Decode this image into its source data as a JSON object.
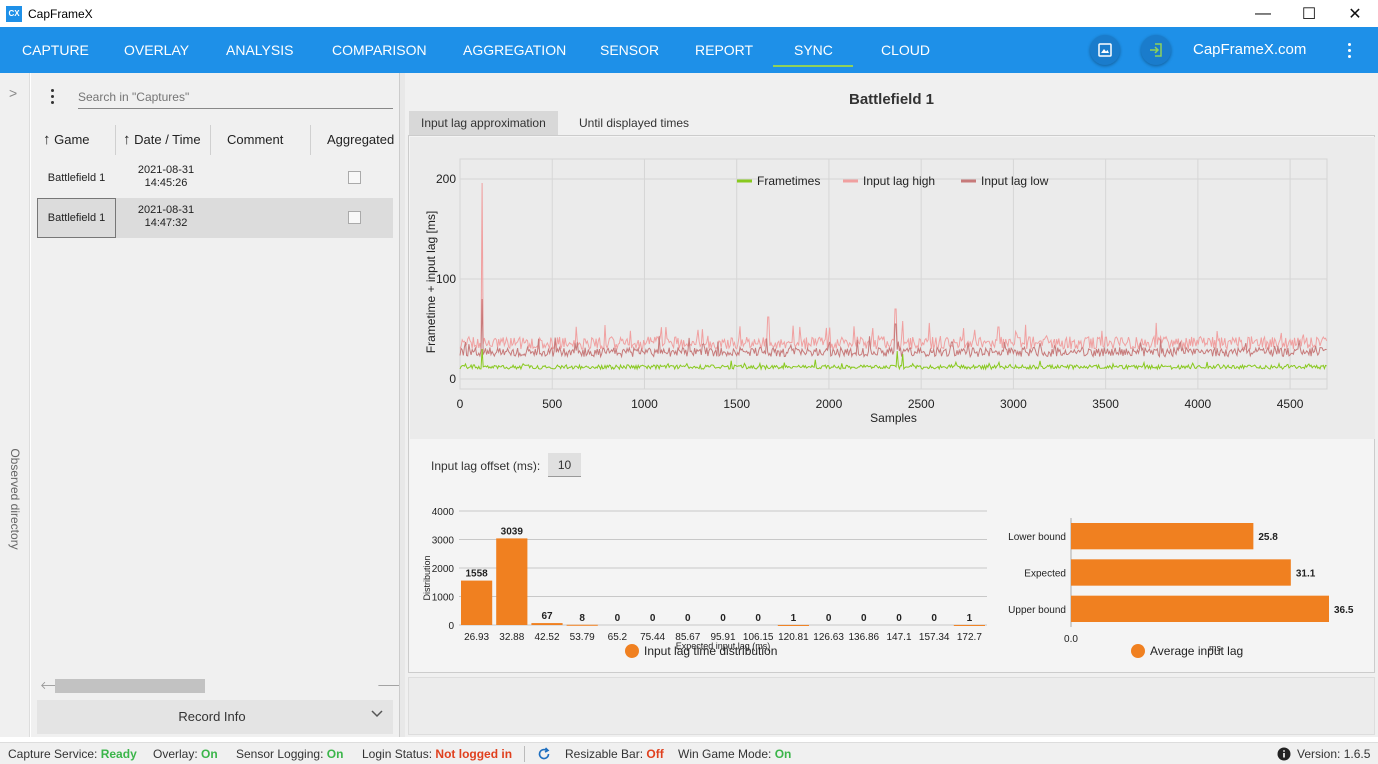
{
  "app": {
    "logo_text": "CX",
    "title": "CapFrameX"
  },
  "window_controls": {
    "minimize": "—",
    "maximize": "☐",
    "close": "✕"
  },
  "nav": {
    "tabs": [
      "CAPTURE",
      "OVERLAY",
      "ANALYSIS",
      "COMPARISON",
      "AGGREGATION",
      "SENSOR",
      "REPORT",
      "SYNC",
      "CLOUD"
    ],
    "active_tab": "SYNC",
    "site": "CapFrameX.com",
    "accent": "#1e90e8",
    "underline_color": "#8fd15a",
    "icons": [
      "screenshot-icon",
      "login-icon",
      "more-vert-icon"
    ]
  },
  "drawer": {
    "label": "Observed directory",
    "chevron": ">"
  },
  "captures": {
    "search_placeholder": "Search in \"Captures\"",
    "columns": [
      "Game",
      "Date / Time",
      "Comment",
      "Aggregated"
    ],
    "sort_arrow": "↑",
    "rows": [
      {
        "game": "Battlefield 1",
        "date": "2021-08-31",
        "time": "14:45:26",
        "aggregated": false,
        "selected": false
      },
      {
        "game": "Battlefield 1",
        "date": "2021-08-31",
        "time": "14:47:32",
        "aggregated": false,
        "selected": true
      }
    ],
    "scroll_left": "🡐",
    "scroll_right": "🡒",
    "record_info": "Record Info"
  },
  "sync": {
    "game_title": "Battlefield 1",
    "tabs": [
      "Input lag approximation",
      "Until displayed times"
    ],
    "active_tab": "Input lag approximation",
    "input_lag_offset_label": "Input lag offset (ms):",
    "input_lag_offset_value": "10"
  },
  "chart_data": [
    {
      "type": "line",
      "title": "",
      "xlabel": "Samples",
      "ylabel": "Frametime + input lag [ms]",
      "xlim": [
        0,
        4700
      ],
      "ylim": [
        -10,
        220
      ],
      "xticks": [
        0,
        500,
        1000,
        1500,
        2000,
        2500,
        3000,
        3500,
        4000,
        4500
      ],
      "yticks": [
        0,
        100,
        200
      ],
      "grid": true,
      "legend": "top-center",
      "series": [
        {
          "name": "Frametimes",
          "color": "#88c91e",
          "baseline": 12,
          "spikes": [
            [
              120,
              30
            ],
            [
              2370,
              28
            ],
            [
              2400,
              25
            ]
          ]
        },
        {
          "name": "Input lag high",
          "color": "#f0a0a0",
          "baseline": 36,
          "spikes": [
            [
              120,
              196
            ],
            [
              1670,
              62
            ],
            [
              2360,
              70
            ],
            [
              2400,
              58
            ],
            [
              2920,
              52
            ]
          ]
        },
        {
          "name": "Input lag low",
          "color": "#c77a7a",
          "baseline": 27,
          "spikes": [
            [
              120,
              80
            ],
            [
              2360,
              55
            ]
          ]
        }
      ]
    },
    {
      "type": "bar",
      "title": "",
      "xlabel": "Expected input lag (ms)",
      "ylabel": "Distribution",
      "ylim": [
        0,
        4000
      ],
      "yticks": [
        0,
        1000,
        2000,
        3000,
        4000
      ],
      "categories": [
        "26.93",
        "32.88",
        "42.52",
        "53.79",
        "65.2",
        "75.44",
        "85.67",
        "95.91",
        "106.15",
        "120.81",
        "126.63",
        "136.86",
        "147.1",
        "157.34",
        "172.7"
      ],
      "values": [
        1558,
        3039,
        67,
        8,
        0,
        0,
        0,
        0,
        0,
        1,
        0,
        0,
        0,
        0,
        1
      ],
      "color": "#f08020",
      "legend": "Input lag time distribution"
    },
    {
      "type": "bar",
      "orientation": "horizontal",
      "title": "",
      "xlabel": "ms",
      "xlim": [
        0,
        36.5
      ],
      "xticks": [
        "0.0"
      ],
      "categories": [
        "Lower bound",
        "Expected",
        "Upper bound"
      ],
      "values": [
        25.8,
        31.1,
        36.5
      ],
      "color": "#f08020",
      "legend": "Average input lag"
    }
  ],
  "status": {
    "capture_service_label": "Capture Service:",
    "capture_service_value": "Ready",
    "overlay_label": "Overlay:",
    "overlay_value": "On",
    "sensor_label": "Sensor Logging:",
    "sensor_value": "On",
    "login_label": "Login Status:",
    "login_value": "Not logged in",
    "rebar_label": "Resizable Bar:",
    "rebar_value": "Off",
    "gamemode_label": "Win Game Mode:",
    "gamemode_value": "On",
    "version_label": "Version:",
    "version_value": "1.6.5",
    "ok_color": "#3bb54a",
    "warn_color": "#e0401e"
  }
}
